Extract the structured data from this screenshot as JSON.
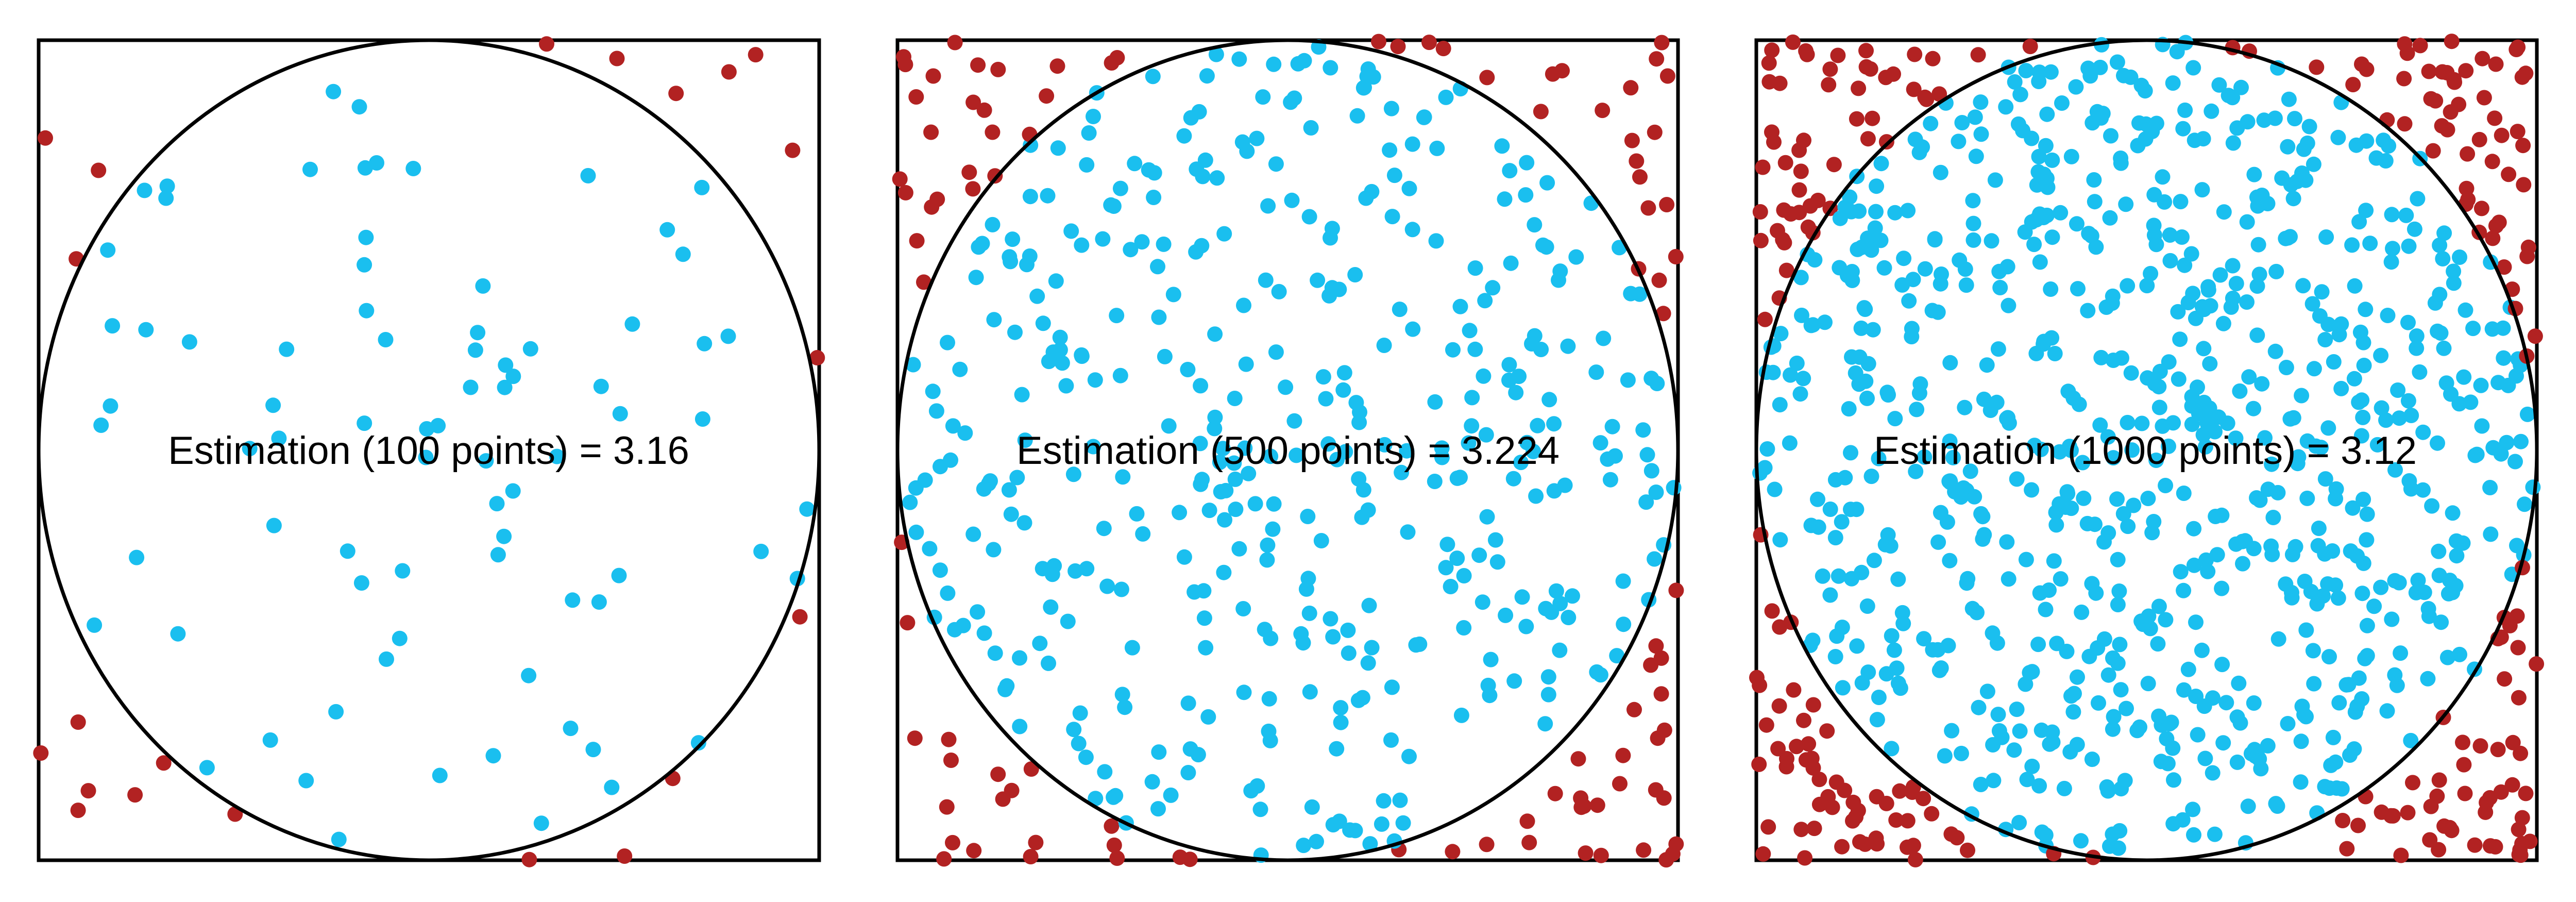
{
  "chart_data": [
    {
      "type": "scatter",
      "title": "",
      "label": "Estimation (100 points) = 3.16",
      "n_points": 100,
      "estimate": 3.16,
      "xlim": [
        0,
        1
      ],
      "ylim": [
        0,
        1
      ],
      "grid": false,
      "circle": {
        "center": [
          0.5,
          0.5
        ],
        "radius": 0.5
      },
      "colors": {
        "inside": "#1ABFEF",
        "outside": "#B22222",
        "outline": "#000000"
      },
      "seed": 11
    },
    {
      "type": "scatter",
      "title": "",
      "label": "Estimation (500 points) = 3.224",
      "n_points": 500,
      "estimate": 3.224,
      "xlim": [
        0,
        1
      ],
      "ylim": [
        0,
        1
      ],
      "grid": false,
      "circle": {
        "center": [
          0.5,
          0.5
        ],
        "radius": 0.5
      },
      "colors": {
        "inside": "#1ABFEF",
        "outside": "#B22222",
        "outline": "#000000"
      },
      "seed": 523
    },
    {
      "type": "scatter",
      "title": "",
      "label": "Estimation (1000 points) = 3.12",
      "n_points": 1000,
      "estimate": 3.12,
      "xlim": [
        0,
        1
      ],
      "ylim": [
        0,
        1
      ],
      "grid": false,
      "circle": {
        "center": [
          0.5,
          0.5
        ],
        "radius": 0.5
      },
      "colors": {
        "inside": "#1ABFEF",
        "outside": "#B22222",
        "outline": "#000000"
      },
      "seed": 9071
    }
  ]
}
